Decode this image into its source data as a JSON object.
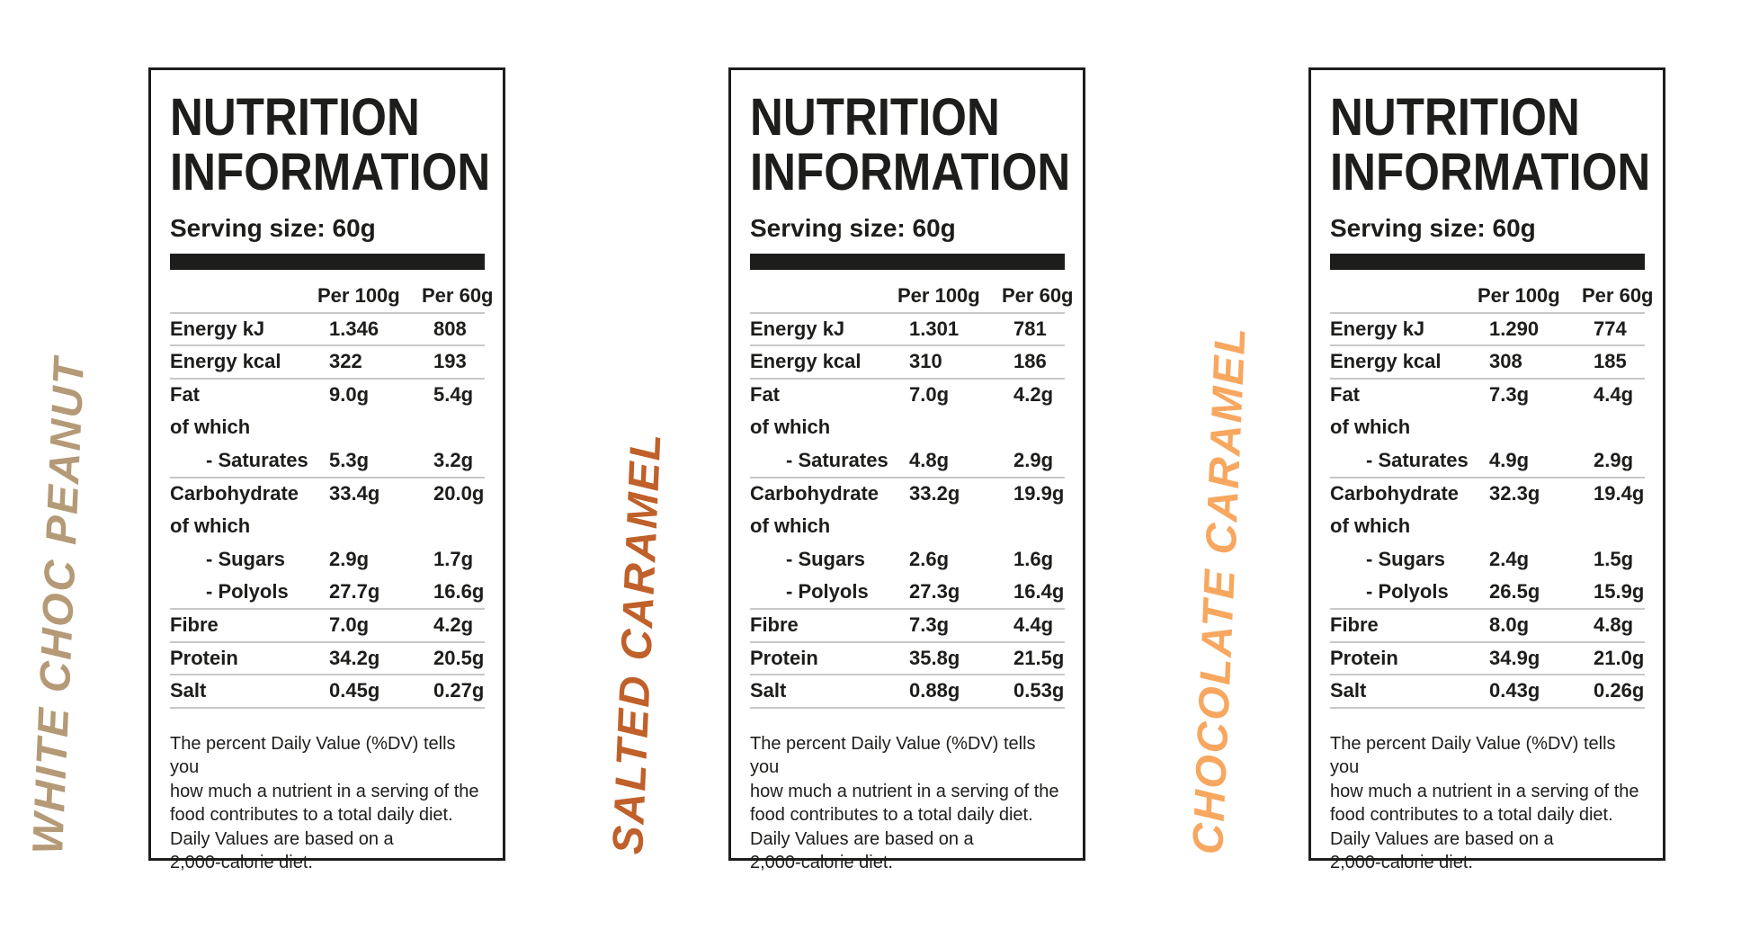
{
  "shared": {
    "title": "NUTRITION INFORMATION",
    "serving_label": "Serving size: 60g",
    "columns": [
      "Per 100g",
      "Per 60g"
    ],
    "footnote_lines": [
      "The percent Daily Value (%DV) tells you",
      "how much a nutrient in a serving of the",
      "food contributes to a total daily diet.",
      "Daily Values are based on a",
      "2,000-calorie diet."
    ]
  },
  "colors": {
    "text": "#1d1d1b",
    "rule": "#c8c8c8"
  },
  "panels": [
    {
      "flavor": "WHITE CHOC PEANUT",
      "flavor_color": "#b49a77",
      "rows": [
        {
          "label": "Energy kJ",
          "per_100g": "1.346",
          "per_60g": "808",
          "indent": false,
          "rule_below": true
        },
        {
          "label": "Energy kcal",
          "per_100g": "322",
          "per_60g": "193",
          "indent": false,
          "rule_below": true
        },
        {
          "label": "Fat",
          "per_100g": "9.0g",
          "per_60g": "5.4g",
          "indent": false,
          "rule_below": false
        },
        {
          "label": "of which",
          "per_100g": "",
          "per_60g": "",
          "indent": false,
          "rule_below": false
        },
        {
          "label": "- Saturates",
          "per_100g": "5.3g",
          "per_60g": "3.2g",
          "indent": true,
          "rule_below": true
        },
        {
          "label": "Carbohydrate",
          "per_100g": "33.4g",
          "per_60g": "20.0g",
          "indent": false,
          "rule_below": false
        },
        {
          "label": "of which",
          "per_100g": "",
          "per_60g": "",
          "indent": false,
          "rule_below": false
        },
        {
          "label": "- Sugars",
          "per_100g": "2.9g",
          "per_60g": "1.7g",
          "indent": true,
          "rule_below": false
        },
        {
          "label": "- Polyols",
          "per_100g": "27.7g",
          "per_60g": "16.6g",
          "indent": true,
          "rule_below": true
        },
        {
          "label": "Fibre",
          "per_100g": "7.0g",
          "per_60g": "4.2g",
          "indent": false,
          "rule_below": true
        },
        {
          "label": "Protein",
          "per_100g": "34.2g",
          "per_60g": "20.5g",
          "indent": false,
          "rule_below": true
        },
        {
          "label": "Salt",
          "per_100g": "0.45g",
          "per_60g": "0.27g",
          "indent": false,
          "rule_below": true
        }
      ]
    },
    {
      "flavor": "SALTED CARAMEL",
      "flavor_color": "#c0602a",
      "rows": [
        {
          "label": "Energy kJ",
          "per_100g": "1.301",
          "per_60g": "781",
          "indent": false,
          "rule_below": true
        },
        {
          "label": "Energy kcal",
          "per_100g": "310",
          "per_60g": "186",
          "indent": false,
          "rule_below": true
        },
        {
          "label": "Fat",
          "per_100g": "7.0g",
          "per_60g": "4.2g",
          "indent": false,
          "rule_below": false
        },
        {
          "label": "of which",
          "per_100g": "",
          "per_60g": "",
          "indent": false,
          "rule_below": false
        },
        {
          "label": "- Saturates",
          "per_100g": "4.8g",
          "per_60g": "2.9g",
          "indent": true,
          "rule_below": true
        },
        {
          "label": "Carbohydrate",
          "per_100g": "33.2g",
          "per_60g": "19.9g",
          "indent": false,
          "rule_below": false
        },
        {
          "label": "of which",
          "per_100g": "",
          "per_60g": "",
          "indent": false,
          "rule_below": false
        },
        {
          "label": "- Sugars",
          "per_100g": "2.6g",
          "per_60g": "1.6g",
          "indent": true,
          "rule_below": false
        },
        {
          "label": "- Polyols",
          "per_100g": "27.3g",
          "per_60g": "16.4g",
          "indent": true,
          "rule_below": true
        },
        {
          "label": "Fibre",
          "per_100g": "7.3g",
          "per_60g": "4.4g",
          "indent": false,
          "rule_below": true
        },
        {
          "label": "Protein",
          "per_100g": "35.8g",
          "per_60g": "21.5g",
          "indent": false,
          "rule_below": true
        },
        {
          "label": "Salt",
          "per_100g": "0.88g",
          "per_60g": "0.53g",
          "indent": false,
          "rule_below": true
        }
      ]
    },
    {
      "flavor": "CHOCOLATE CARAMEL",
      "flavor_color": "#f7a75f",
      "rows": [
        {
          "label": "Energy kJ",
          "per_100g": "1.290",
          "per_60g": "774",
          "indent": false,
          "rule_below": true
        },
        {
          "label": "Energy kcal",
          "per_100g": "308",
          "per_60g": "185",
          "indent": false,
          "rule_below": true
        },
        {
          "label": "Fat",
          "per_100g": "7.3g",
          "per_60g": "4.4g",
          "indent": false,
          "rule_below": false
        },
        {
          "label": "of which",
          "per_100g": "",
          "per_60g": "",
          "indent": false,
          "rule_below": false
        },
        {
          "label": "- Saturates",
          "per_100g": "4.9g",
          "per_60g": "2.9g",
          "indent": true,
          "rule_below": true
        },
        {
          "label": "Carbohydrate",
          "per_100g": "32.3g",
          "per_60g": "19.4g",
          "indent": false,
          "rule_below": false
        },
        {
          "label": "of which",
          "per_100g": "",
          "per_60g": "",
          "indent": false,
          "rule_below": false
        },
        {
          "label": "- Sugars",
          "per_100g": "2.4g",
          "per_60g": "1.5g",
          "indent": true,
          "rule_below": false
        },
        {
          "label": "- Polyols",
          "per_100g": "26.5g",
          "per_60g": "15.9g",
          "indent": true,
          "rule_below": true
        },
        {
          "label": "Fibre",
          "per_100g": "8.0g",
          "per_60g": "4.8g",
          "indent": false,
          "rule_below": true
        },
        {
          "label": "Protein",
          "per_100g": "34.9g",
          "per_60g": "21.0g",
          "indent": false,
          "rule_below": true
        },
        {
          "label": "Salt",
          "per_100g": "0.43g",
          "per_60g": "0.26g",
          "indent": false,
          "rule_below": true
        }
      ]
    }
  ]
}
